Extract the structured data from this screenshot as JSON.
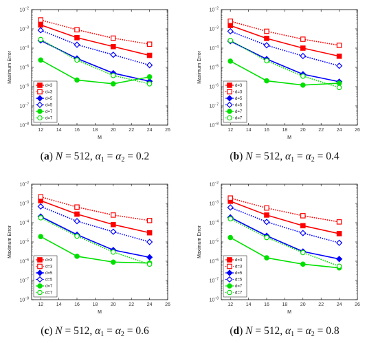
{
  "chart_data": [
    {
      "type": "line",
      "panel": "a",
      "caption": {
        "label": "(a)",
        "text": "N = 512, α1 = α2 = 0.2",
        "N": "512",
        "alpha": "0.2"
      },
      "xlabel": "M",
      "ylabel": "Maximum Error",
      "xlim": [
        11,
        26
      ],
      "xticks": [
        12,
        14,
        16,
        18,
        20,
        22,
        24,
        26
      ],
      "ylim": [
        1e-08,
        0.01
      ],
      "yscale": "log",
      "grid": false,
      "legend_position": "bottom-left",
      "x": [
        12,
        16,
        20,
        24
      ],
      "series": [
        {
          "name": "d=3",
          "color": "#ff0000",
          "style": "solid",
          "marker": "square",
          "values": [
            0.0016,
            0.00035,
            0.00012,
            4.2e-05
          ]
        },
        {
          "name": "d=3",
          "color": "#ff0000",
          "style": "dotted",
          "marker": "square-open",
          "values": [
            0.0029,
            0.0009,
            0.00033,
            0.00016
          ]
        },
        {
          "name": "d=5",
          "color": "#0000ff",
          "style": "solid",
          "marker": "diamond",
          "values": [
            0.00025,
            2.9e-05,
            5e-06,
            1.9e-06
          ]
        },
        {
          "name": "d=5",
          "color": "#0000ff",
          "style": "dotted",
          "marker": "diamond-open",
          "values": [
            0.00085,
            0.00015,
            4.5e-05,
            1.3e-05
          ]
        },
        {
          "name": "d=7",
          "color": "#00e000",
          "style": "solid",
          "marker": "circle",
          "values": [
            2.4e-05,
            2.2e-06,
            1.4e-06,
            3.2e-06
          ]
        },
        {
          "name": "d=7",
          "color": "#00e000",
          "style": "dotted",
          "marker": "circle-open",
          "values": [
            0.00028,
            2.4e-05,
            3.8e-06,
            1.4e-06
          ]
        }
      ]
    },
    {
      "type": "line",
      "panel": "b",
      "caption": {
        "label": "(b)",
        "text": "N = 512, α1 = α2 = 0.4",
        "N": "512",
        "alpha": "0.4"
      },
      "xlabel": "M",
      "ylabel": "Maximum Error",
      "xlim": [
        11,
        26
      ],
      "xticks": [
        12,
        14,
        16,
        18,
        20,
        22,
        24,
        26
      ],
      "ylim": [
        1e-08,
        0.01
      ],
      "yscale": "log",
      "grid": false,
      "legend_position": "bottom-left",
      "x": [
        12,
        16,
        20,
        24
      ],
      "series": [
        {
          "name": "d=3",
          "color": "#ff0000",
          "style": "solid",
          "marker": "square",
          "values": [
            0.0015,
            0.00032,
            0.0001,
            3.8e-05
          ]
        },
        {
          "name": "d=3",
          "color": "#ff0000",
          "style": "dotted",
          "marker": "square-open",
          "values": [
            0.0025,
            0.00075,
            0.00029,
            0.00014
          ]
        },
        {
          "name": "d=5",
          "color": "#0000ff",
          "style": "solid",
          "marker": "diamond",
          "values": [
            0.00023,
            2.7e-05,
            4.4e-06,
            1.8e-06
          ]
        },
        {
          "name": "d=5",
          "color": "#0000ff",
          "style": "dotted",
          "marker": "diamond-open",
          "values": [
            0.00075,
            0.00014,
            3.9e-05,
            1.2e-05
          ]
        },
        {
          "name": "d=7",
          "color": "#00e000",
          "style": "solid",
          "marker": "circle",
          "values": [
            2.1e-05,
            2e-06,
            1.2e-06,
            1.5e-06
          ]
        },
        {
          "name": "d=7",
          "color": "#00e000",
          "style": "dotted",
          "marker": "circle-open",
          "values": [
            0.00025,
            2.2e-05,
            3.5e-06,
            9e-07
          ]
        }
      ]
    },
    {
      "type": "line",
      "panel": "c",
      "caption": {
        "label": "(c)",
        "text": "N = 512, α1 = α2 = 0.6",
        "N": "512",
        "alpha": "0.6"
      },
      "xlabel": "M",
      "ylabel": "Maximum Error",
      "xlim": [
        11,
        26
      ],
      "xticks": [
        12,
        14,
        16,
        18,
        20,
        22,
        24,
        26
      ],
      "ylim": [
        1e-08,
        0.01
      ],
      "yscale": "log",
      "grid": false,
      "legend_position": "bottom-left",
      "x": [
        12,
        16,
        20,
        24
      ],
      "series": [
        {
          "name": "d=3",
          "color": "#ff0000",
          "style": "solid",
          "marker": "square",
          "values": [
            0.0014,
            0.00028,
            8e-05,
            3e-05
          ]
        },
        {
          "name": "d=3",
          "color": "#ff0000",
          "style": "dotted",
          "marker": "square-open",
          "values": [
            0.0022,
            0.00065,
            0.00025,
            0.00013
          ]
        },
        {
          "name": "d=5",
          "color": "#0000ff",
          "style": "solid",
          "marker": "diamond",
          "values": [
            0.00021,
            2.4e-05,
            3.8e-06,
            1.6e-06
          ]
        },
        {
          "name": "d=5",
          "color": "#0000ff",
          "style": "dotted",
          "marker": "diamond-open",
          "values": [
            0.0007,
            0.00012,
            3.4e-05,
            1e-05
          ]
        },
        {
          "name": "d=7",
          "color": "#00e000",
          "style": "solid",
          "marker": "circle",
          "values": [
            1.9e-05,
            1.8e-06,
            9e-07,
            8e-07
          ]
        },
        {
          "name": "d=7",
          "color": "#00e000",
          "style": "dotted",
          "marker": "circle-open",
          "values": [
            0.00018,
            2e-05,
            3e-06,
            7e-07
          ]
        }
      ]
    },
    {
      "type": "line",
      "panel": "d",
      "caption": {
        "label": "(d)",
        "text": "N = 512, α1 = α2 = 0.8",
        "N": "512",
        "alpha": "0.8"
      },
      "xlabel": "M",
      "ylabel": "Maximum Error",
      "xlim": [
        11,
        26
      ],
      "xticks": [
        12,
        14,
        16,
        18,
        20,
        22,
        24,
        26
      ],
      "ylim": [
        1e-08,
        0.01
      ],
      "yscale": "log",
      "grid": false,
      "legend_position": "bottom-left",
      "x": [
        12,
        16,
        20,
        24
      ],
      "series": [
        {
          "name": "d=3",
          "color": "#ff0000",
          "style": "solid",
          "marker": "square",
          "values": [
            0.0013,
            0.00025,
            7e-05,
            2.7e-05
          ]
        },
        {
          "name": "d=3",
          "color": "#ff0000",
          "style": "dotted",
          "marker": "square-open",
          "values": [
            0.0019,
            0.00058,
            0.00023,
            0.00011
          ]
        },
        {
          "name": "d=5",
          "color": "#0000ff",
          "style": "solid",
          "marker": "diamond",
          "values": [
            0.00019,
            2.1e-05,
            3.2e-06,
            1.3e-06
          ]
        },
        {
          "name": "d=5",
          "color": "#0000ff",
          "style": "dotted",
          "marker": "diamond-open",
          "values": [
            0.00062,
            0.00011,
            2.9e-05,
            9e-06
          ]
        },
        {
          "name": "d=7",
          "color": "#00e000",
          "style": "solid",
          "marker": "circle",
          "values": [
            1.7e-05,
            1.5e-06,
            7e-07,
            4.5e-07
          ]
        },
        {
          "name": "d=7",
          "color": "#00e000",
          "style": "dotted",
          "marker": "circle-open",
          "values": [
            0.00016,
            1.7e-05,
            2.8e-06,
            5.5e-07
          ]
        }
      ]
    }
  ]
}
